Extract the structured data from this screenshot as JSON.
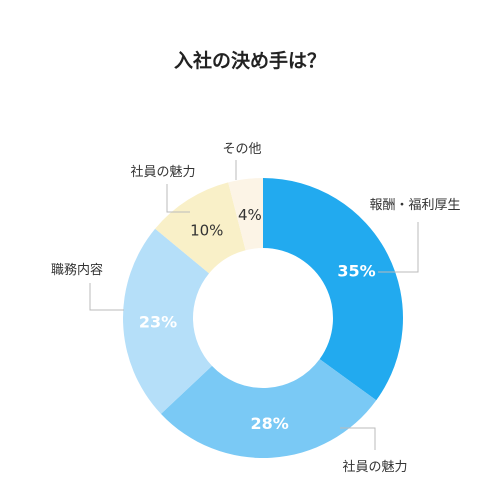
{
  "chart_data": {
    "type": "pie",
    "title": "入社の決め手は？",
    "categories": [
      "報酬・福利厚生",
      "社員の魅力",
      "職務内容",
      "社員の魅力",
      "その他"
    ],
    "values": [
      35,
      28,
      23,
      10,
      4
    ],
    "value_labels": [
      "35%",
      "28%",
      "23%",
      "10%",
      "4%"
    ],
    "colors": [
      "#22aaef",
      "#7ac9f5",
      "#b5dff9",
      "#f9f0c8",
      "#fcf4e6"
    ],
    "label_colors": [
      "#ffffff",
      "#ffffff",
      "#ffffff",
      "#333333",
      "#333333"
    ],
    "style": "donut",
    "legend": "callout labels"
  }
}
